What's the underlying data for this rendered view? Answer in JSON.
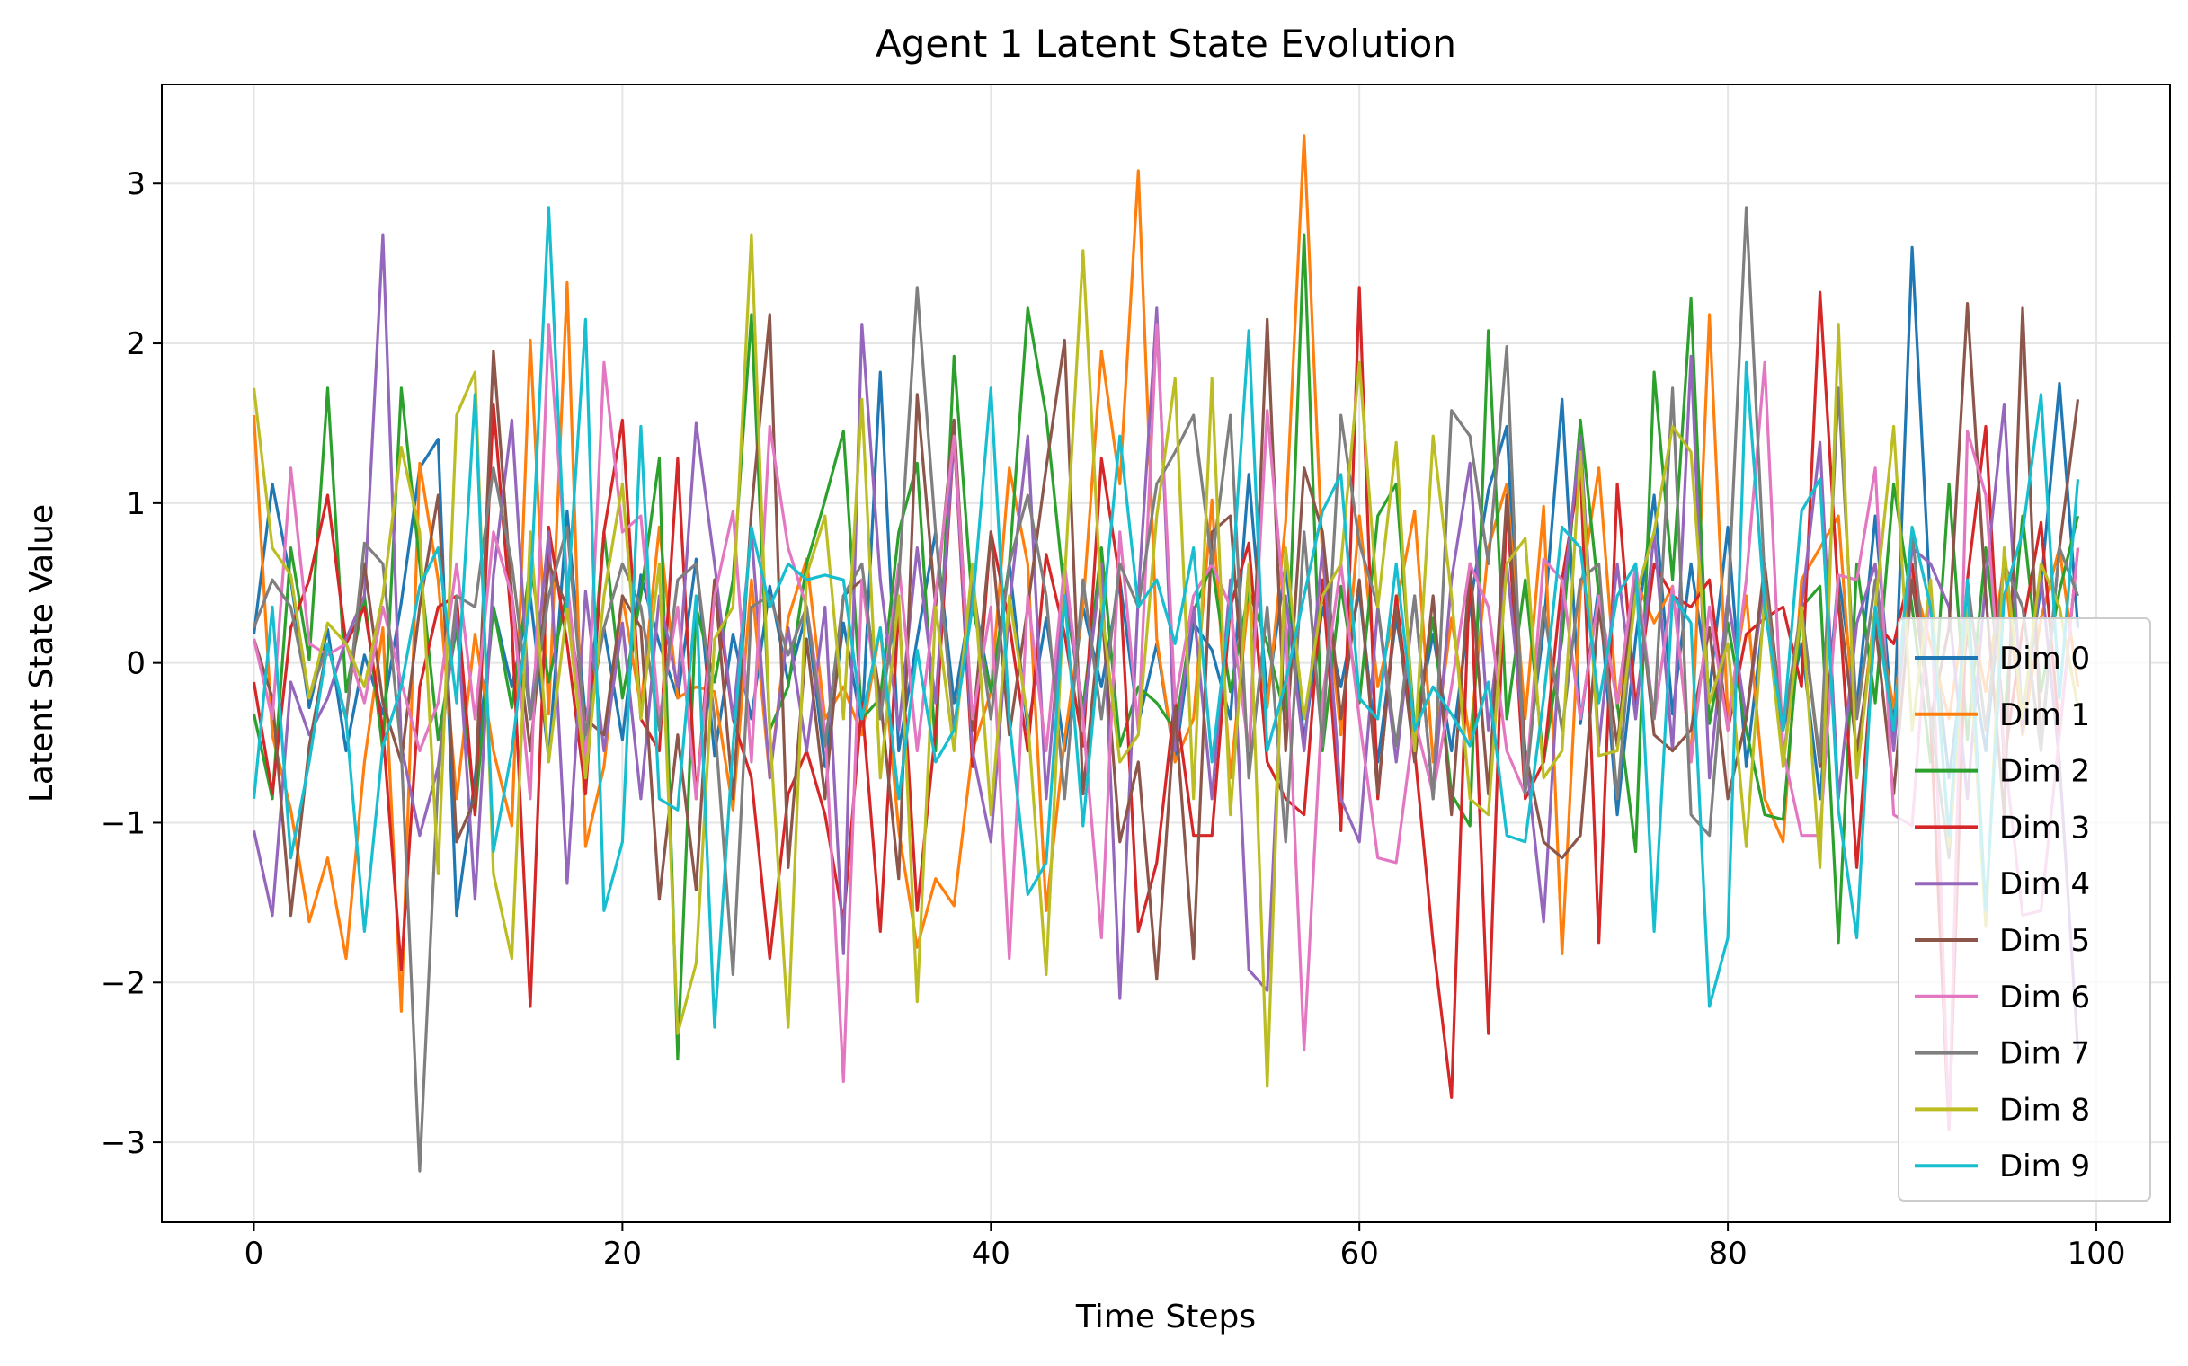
{
  "chart_data": {
    "type": "line",
    "title": "Agent 1 Latent State Evolution",
    "xlabel": "Time Steps",
    "ylabel": "Latent State Value",
    "xlim": [
      -5,
      104
    ],
    "ylim": [
      -3.5,
      3.62
    ],
    "xticks": [
      0,
      20,
      40,
      60,
      80,
      100
    ],
    "yticks": [
      -3,
      -2,
      -1,
      0,
      1,
      2,
      3
    ],
    "xtick_labels": [
      "0",
      "20",
      "40",
      "60",
      "80",
      "100"
    ],
    "ytick_labels": [
      "−3",
      "−2",
      "−1",
      "0",
      "1",
      "2",
      "3"
    ],
    "grid": true,
    "legend_position": "lower-right",
    "x": [
      0,
      1,
      2,
      3,
      4,
      5,
      6,
      7,
      8,
      9,
      10,
      11,
      12,
      13,
      14,
      15,
      16,
      17,
      18,
      19,
      20,
      21,
      22,
      23,
      24,
      25,
      26,
      27,
      28,
      29,
      30,
      31,
      32,
      33,
      34,
      35,
      36,
      37,
      38,
      39,
      40,
      41,
      42,
      43,
      44,
      45,
      46,
      47,
      48,
      49,
      50,
      51,
      52,
      53,
      54,
      55,
      56,
      57,
      58,
      59,
      60,
      61,
      62,
      63,
      64,
      65,
      66,
      67,
      68,
      69,
      70,
      71,
      72,
      73,
      74,
      75,
      76,
      77,
      78,
      79,
      80,
      81,
      82,
      83,
      84,
      85,
      86,
      87,
      88,
      89,
      90,
      91,
      92,
      93,
      94,
      95,
      96,
      97,
      98,
      99
    ],
    "series": [
      {
        "name": "Dim 0",
        "color": "#1f77b4",
        "values": [
          0.18,
          1.12,
          0.52,
          -0.28,
          0.21,
          -0.55,
          0.05,
          -0.32,
          0.38,
          1.22,
          1.4,
          -1.58,
          -0.72,
          0.35,
          -0.15,
          0.42,
          -0.6,
          0.95,
          -0.35,
          0.22,
          -0.48,
          0.55,
          0.12,
          -0.22,
          0.65,
          -0.58,
          0.18,
          -0.35,
          0.48,
          -0.12,
          0.32,
          -0.65,
          0.25,
          -0.4,
          1.82,
          -0.55,
          0.15,
          0.82,
          -0.25,
          0.45,
          -0.18,
          0.62,
          -0.42,
          0.28,
          -0.55,
          0.35,
          -0.15,
          0.52,
          -0.38,
          0.12,
          -0.62,
          0.25,
          0.08,
          -0.35,
          1.18,
          -0.22,
          0.62,
          -0.48,
          0.35,
          -0.15,
          0.45,
          -0.62,
          0.28,
          -0.42,
          0.18,
          -0.55,
          0.35,
          1.08,
          1.48,
          -0.72,
          0.22,
          1.65,
          -0.38,
          0.48,
          -0.95,
          0.15,
          1.05,
          -0.32,
          0.62,
          -0.18,
          0.85,
          -0.65,
          0.35,
          -0.42,
          0.12,
          -0.85,
          0.55,
          -0.28,
          0.92,
          -0.45,
          2.6,
          0.35,
          -0.72,
          0.18,
          -0.55,
          0.65,
          -0.32,
          0.48,
          1.75,
          0.22
        ]
      },
      {
        "name": "Dim 1",
        "color": "#ff7f0e",
        "values": [
          1.55,
          -0.45,
          -0.92,
          -1.62,
          -1.22,
          -1.85,
          -0.62,
          0.22,
          -2.18,
          1.25,
          0.52,
          -0.85,
          0.18,
          -0.55,
          -1.02,
          2.02,
          -0.32,
          2.38,
          -1.15,
          -0.65,
          0.42,
          -0.28,
          0.85,
          -0.22,
          -0.15,
          -0.18,
          -0.92,
          0.52,
          -0.72,
          0.28,
          0.65,
          -0.35,
          -0.15,
          -0.45,
          0.22,
          -1.05,
          -1.78,
          -1.35,
          -1.52,
          -0.55,
          -0.18,
          1.22,
          0.62,
          -1.55,
          -0.48,
          0.35,
          1.95,
          1.12,
          3.08,
          0.15,
          -0.62,
          -0.35,
          1.02,
          -0.72,
          0.42,
          -0.28,
          0.88,
          3.3,
          0.65,
          -0.45,
          0.92,
          -0.15,
          0.35,
          0.95,
          -0.62,
          0.28,
          -0.48,
          0.72,
          1.12,
          -0.35,
          0.98,
          -1.82,
          0.45,
          1.22,
          -0.28,
          0.52,
          0.25,
          0.48,
          -0.62,
          2.18,
          -0.35,
          0.42,
          -0.85,
          -1.12,
          0.52,
          0.72,
          0.92,
          -0.62,
          0.35,
          -0.28,
          0.55,
          0.12,
          -0.35,
          0.42,
          -0.18,
          0.62,
          -0.45,
          0.28,
          0.72,
          -0.15
        ]
      },
      {
        "name": "Dim 2",
        "color": "#2ca02c",
        "values": [
          -0.32,
          -0.85,
          0.72,
          0.02,
          1.72,
          -0.18,
          0.42,
          -0.55,
          1.72,
          0.62,
          -0.48,
          0.22,
          -0.95,
          0.35,
          -0.28,
          0.62,
          -0.12,
          0.45,
          -0.55,
          0.82,
          -0.22,
          0.42,
          1.28,
          -2.48,
          0.35,
          -0.12,
          0.52,
          2.18,
          -0.42,
          -0.15,
          0.62,
          1.02,
          1.45,
          -0.35,
          -0.22,
          0.82,
          1.25,
          -0.55,
          1.92,
          0.35,
          -0.18,
          0.62,
          2.22,
          1.55,
          0.42,
          -0.28,
          0.72,
          -0.52,
          -0.15,
          -0.25,
          -0.42,
          0.32,
          0.62,
          -0.18,
          0.45,
          0.12,
          -0.35,
          2.68,
          -0.55,
          0.48,
          -0.25,
          0.92,
          1.12,
          -0.42,
          0.28,
          -0.82,
          -1.02,
          2.08,
          -0.35,
          0.52,
          -0.62,
          0.15,
          1.52,
          0.42,
          -0.25,
          -1.18,
          1.82,
          0.52,
          2.28,
          -0.38,
          0.25,
          -0.42,
          -0.95,
          -0.98,
          0.35,
          0.48,
          -1.75,
          0.62,
          -0.25,
          1.12,
          0.35,
          -0.62,
          1.12,
          -0.48,
          0.72,
          -0.35,
          0.92,
          -0.18,
          0.45,
          0.92
        ]
      },
      {
        "name": "Dim 3",
        "color": "#d62728",
        "values": [
          -0.12,
          -0.82,
          0.22,
          0.52,
          1.05,
          0.12,
          0.35,
          -0.42,
          -1.92,
          -0.15,
          0.35,
          0.42,
          -0.95,
          1.62,
          0.22,
          -2.15,
          0.85,
          0.12,
          -0.82,
          0.82,
          1.52,
          -0.35,
          -0.55,
          1.28,
          -0.85,
          0.52,
          -0.35,
          -0.72,
          -1.85,
          -0.82,
          -0.55,
          -0.95,
          -1.62,
          -0.25,
          -1.68,
          0.35,
          -1.55,
          -0.42,
          1.42,
          -0.65,
          0.82,
          0.25,
          -0.55,
          0.68,
          0.18,
          -0.52,
          1.28,
          0.52,
          -1.68,
          -1.25,
          -0.22,
          -1.08,
          -1.08,
          0.35,
          0.75,
          -0.62,
          -0.85,
          -0.95,
          0.52,
          -1.05,
          2.35,
          -0.85,
          0.42,
          -0.55,
          -1.75,
          -2.72,
          0.62,
          -2.32,
          1.02,
          -0.85,
          -0.62,
          0.52,
          1.22,
          -1.75,
          1.12,
          -0.28,
          0.62,
          0.42,
          0.35,
          0.52,
          -0.42,
          0.18,
          0.28,
          0.35,
          -0.15,
          2.32,
          0.42,
          -1.28,
          0.25,
          0.12,
          0.62,
          -0.35,
          -2.92,
          0.52,
          1.48,
          -0.62,
          0.22,
          0.88,
          -0.45,
          0.72
        ]
      },
      {
        "name": "Dim 4",
        "color": "#9467bd",
        "values": [
          -1.05,
          -1.58,
          -0.12,
          -0.45,
          -0.22,
          0.15,
          0.42,
          2.68,
          -0.52,
          -1.08,
          -0.65,
          0.32,
          -1.48,
          0.55,
          1.52,
          -0.35,
          0.82,
          -1.38,
          0.45,
          -0.55,
          0.25,
          -0.85,
          0.42,
          -0.15,
          1.5,
          0.62,
          -0.35,
          0.82,
          -0.72,
          0.22,
          -0.55,
          0.35,
          -1.82,
          2.12,
          0.52,
          -0.42,
          0.72,
          -0.25,
          1.42,
          -0.55,
          -1.12,
          0.35,
          1.42,
          -0.85,
          0.52,
          -0.35,
          0.62,
          -2.1,
          0.42,
          2.22,
          -0.55,
          0.35,
          -0.85,
          0.52,
          -1.92,
          -2.05,
          0.42,
          -0.55,
          0.72,
          -0.85,
          -1.12,
          0.35,
          -0.62,
          0.42,
          -0.85,
          0.52,
          1.25,
          -0.42,
          0.62,
          -0.55,
          -1.62,
          0.35,
          1.42,
          -0.52,
          0.62,
          -0.35,
          0.82,
          -0.55,
          1.92,
          -0.72,
          0.42,
          -0.35,
          0.52,
          -0.62,
          0.35,
          1.38,
          -0.85,
          0.25,
          0.62,
          -0.55,
          0.72,
          0.62,
          0.35,
          -0.85,
          0.52,
          1.62,
          -0.42,
          0.55,
          -0.62,
          -2.42
        ]
      },
      {
        "name": "Dim 5",
        "color": "#8c564b",
        "values": [
          0.15,
          -0.22,
          -1.58,
          -0.52,
          0.12,
          -0.35,
          0.62,
          -0.25,
          -0.62,
          0.35,
          1.05,
          -1.12,
          -0.85,
          1.95,
          0.42,
          -0.55,
          0.62,
          0.35,
          -0.35,
          -0.45,
          0.42,
          0.22,
          -1.48,
          -0.45,
          -1.42,
          0.52,
          -0.85,
          0.95,
          2.18,
          -1.28,
          0.15,
          -0.85,
          0.42,
          0.52,
          -0.22,
          -1.35,
          1.68,
          0.35,
          1.52,
          -0.42,
          0.82,
          -0.45,
          0.35,
          1.22,
          2.02,
          -0.82,
          0.35,
          -1.12,
          -0.62,
          -1.98,
          -0.28,
          -1.85,
          0.82,
          0.92,
          -0.65,
          2.15,
          -0.55,
          1.22,
          0.82,
          -0.35,
          0.52,
          -0.82,
          0.35,
          -0.62,
          0.42,
          -0.95,
          0.62,
          -0.82,
          1.05,
          -0.55,
          -1.12,
          -1.22,
          -1.08,
          0.35,
          -0.52,
          0.62,
          -0.45,
          -0.55,
          -0.42,
          0.22,
          -0.85,
          -0.35,
          0.62,
          -0.42,
          0.35,
          -0.65,
          0.42,
          -0.55,
          0.25,
          -0.82,
          0.52,
          -0.35,
          0.22,
          2.25,
          0.42,
          -0.95,
          2.22,
          -0.52,
          0.72,
          1.65
        ]
      },
      {
        "name": "Dim 6",
        "color": "#e377c2",
        "values": [
          0.15,
          -0.35,
          1.22,
          0.12,
          0.05,
          0.12,
          -0.25,
          0.35,
          -0.12,
          -0.55,
          -0.25,
          0.62,
          -0.35,
          0.82,
          0.42,
          -0.85,
          2.12,
          0.52,
          -0.62,
          1.88,
          0.82,
          0.92,
          -0.35,
          0.35,
          -0.85,
          0.42,
          0.95,
          -0.62,
          1.48,
          0.72,
          0.35,
          -0.42,
          -2.62,
          0.52,
          -0.35,
          0.62,
          -0.55,
          0.42,
          1.42,
          -0.35,
          0.35,
          -1.85,
          0.42,
          -0.55,
          0.62,
          -0.35,
          -1.72,
          0.82,
          -0.42,
          2.12,
          -0.25,
          0.42,
          0.62,
          0.35,
          -0.55,
          1.58,
          0.25,
          -2.42,
          -0.22,
          0.62,
          -0.35,
          -1.22,
          -1.25,
          -0.35,
          -0.82,
          -0.15,
          0.62,
          0.35,
          -0.55,
          -0.82,
          0.65,
          0.52,
          -0.35,
          0.42,
          -0.25,
          0.62,
          -0.35,
          0.48,
          -0.62,
          0.35,
          -0.42,
          0.52,
          1.88,
          -0.55,
          -1.08,
          -1.08,
          0.55,
          0.52,
          1.22,
          -0.95,
          -1.02,
          0.52,
          -2.92,
          1.45,
          1.05,
          -0.55,
          -1.58,
          -1.55,
          -0.45,
          0.72
        ]
      },
      {
        "name": "Dim 7",
        "color": "#7f7f7f",
        "values": [
          0.22,
          0.52,
          0.35,
          -0.22,
          0.12,
          -0.35,
          0.75,
          0.62,
          -0.55,
          -3.18,
          -0.72,
          0.42,
          0.35,
          1.22,
          0.62,
          -0.35,
          0.42,
          0.85,
          -0.45,
          0.22,
          0.62,
          0.35,
          -0.42,
          0.52,
          0.62,
          -0.35,
          -1.95,
          0.35,
          0.42,
          0.05,
          0.35,
          -0.52,
          0.42,
          0.62,
          -0.35,
          0.52,
          2.35,
          0.82,
          -0.42,
          0.52,
          -0.35,
          0.62,
          1.05,
          0.42,
          -0.85,
          0.52,
          -0.35,
          0.62,
          0.35,
          1.12,
          1.32,
          1.55,
          0.62,
          1.55,
          -0.72,
          0.35,
          -1.12,
          0.82,
          -0.52,
          1.55,
          0.75,
          0.35,
          -0.52,
          0.42,
          -0.85,
          1.58,
          1.42,
          0.62,
          1.98,
          -0.82,
          0.35,
          -0.42,
          0.52,
          0.62,
          -0.85,
          0.52,
          -0.35,
          1.72,
          -0.95,
          -1.08,
          0.35,
          2.85,
          0.52,
          -0.42,
          0.35,
          -0.62,
          1.72,
          -0.35,
          0.52,
          -0.42,
          0.82,
          -0.35,
          -1.22,
          0.52,
          -0.42,
          0.62,
          0.35,
          -0.55,
          0.72,
          0.42
        ]
      },
      {
        "name": "Dim 8",
        "color": "#bcbd22",
        "values": [
          1.72,
          0.72,
          0.55,
          -0.22,
          0.25,
          0.12,
          -0.15,
          0.42,
          1.35,
          0.82,
          -1.32,
          1.55,
          1.82,
          -1.32,
          -1.85,
          0.82,
          -0.62,
          0.35,
          -0.72,
          0.42,
          1.12,
          -0.35,
          0.62,
          -2.32,
          -1.88,
          0.15,
          0.35,
          2.68,
          -0.42,
          -2.28,
          0.55,
          0.92,
          -0.35,
          1.65,
          -0.72,
          0.42,
          -2.12,
          0.35,
          -0.55,
          0.62,
          -0.95,
          0.42,
          -0.35,
          -1.95,
          0.52,
          2.58,
          0.35,
          -0.62,
          -0.45,
          0.92,
          1.78,
          -0.85,
          1.78,
          -0.95,
          0.62,
          -2.65,
          0.72,
          -0.35,
          0.42,
          0.62,
          1.88,
          0.35,
          1.38,
          -0.55,
          1.42,
          0.42,
          -0.85,
          -0.95,
          0.62,
          0.78,
          -0.72,
          -0.55,
          1.32,
          -0.58,
          -0.55,
          0.42,
          0.82,
          1.48,
          1.32,
          -0.25,
          0.12,
          -1.15,
          0.42,
          -0.65,
          0.35,
          -1.28,
          2.12,
          -0.72,
          0.35,
          1.48,
          -0.42,
          0.52,
          -1.15,
          0.35,
          -1.65,
          0.72,
          -0.35,
          0.62,
          0.35,
          -0.28
        ]
      },
      {
        "name": "Dim 9",
        "color": "#17becf",
        "values": [
          -0.85,
          0.35,
          -1.22,
          -0.62,
          0.12,
          -0.35,
          -1.68,
          -0.52,
          -0.15,
          0.48,
          0.72,
          -0.25,
          1.68,
          -1.18,
          -0.55,
          0.42,
          2.85,
          0.35,
          2.15,
          -1.55,
          -1.12,
          1.48,
          -0.85,
          -0.92,
          0.42,
          -2.28,
          -0.52,
          0.85,
          0.35,
          0.62,
          0.52,
          0.55,
          0.52,
          -0.35,
          0.22,
          -0.85,
          0.08,
          -0.62,
          -0.42,
          0.35,
          1.72,
          -0.35,
          -1.45,
          -1.25,
          0.42,
          -1.02,
          0.22,
          1.42,
          0.35,
          0.52,
          0.12,
          0.72,
          -0.62,
          0.35,
          2.08,
          -0.55,
          -0.12,
          0.42,
          0.95,
          1.18,
          -0.22,
          -0.35,
          0.62,
          -0.42,
          -0.15,
          -0.32,
          -0.52,
          -0.12,
          -1.08,
          -1.12,
          -0.22,
          0.85,
          0.72,
          -0.25,
          0.42,
          0.62,
          -1.68,
          0.42,
          0.25,
          -2.15,
          -1.72,
          1.88,
          0.35,
          -0.42,
          0.95,
          1.15,
          -0.92,
          -1.72,
          0.35,
          -0.42,
          0.85,
          0.35,
          -1.08,
          0.52,
          -1.55,
          0.42,
          0.82,
          1.68,
          -0.22,
          1.15
        ]
      }
    ]
  }
}
